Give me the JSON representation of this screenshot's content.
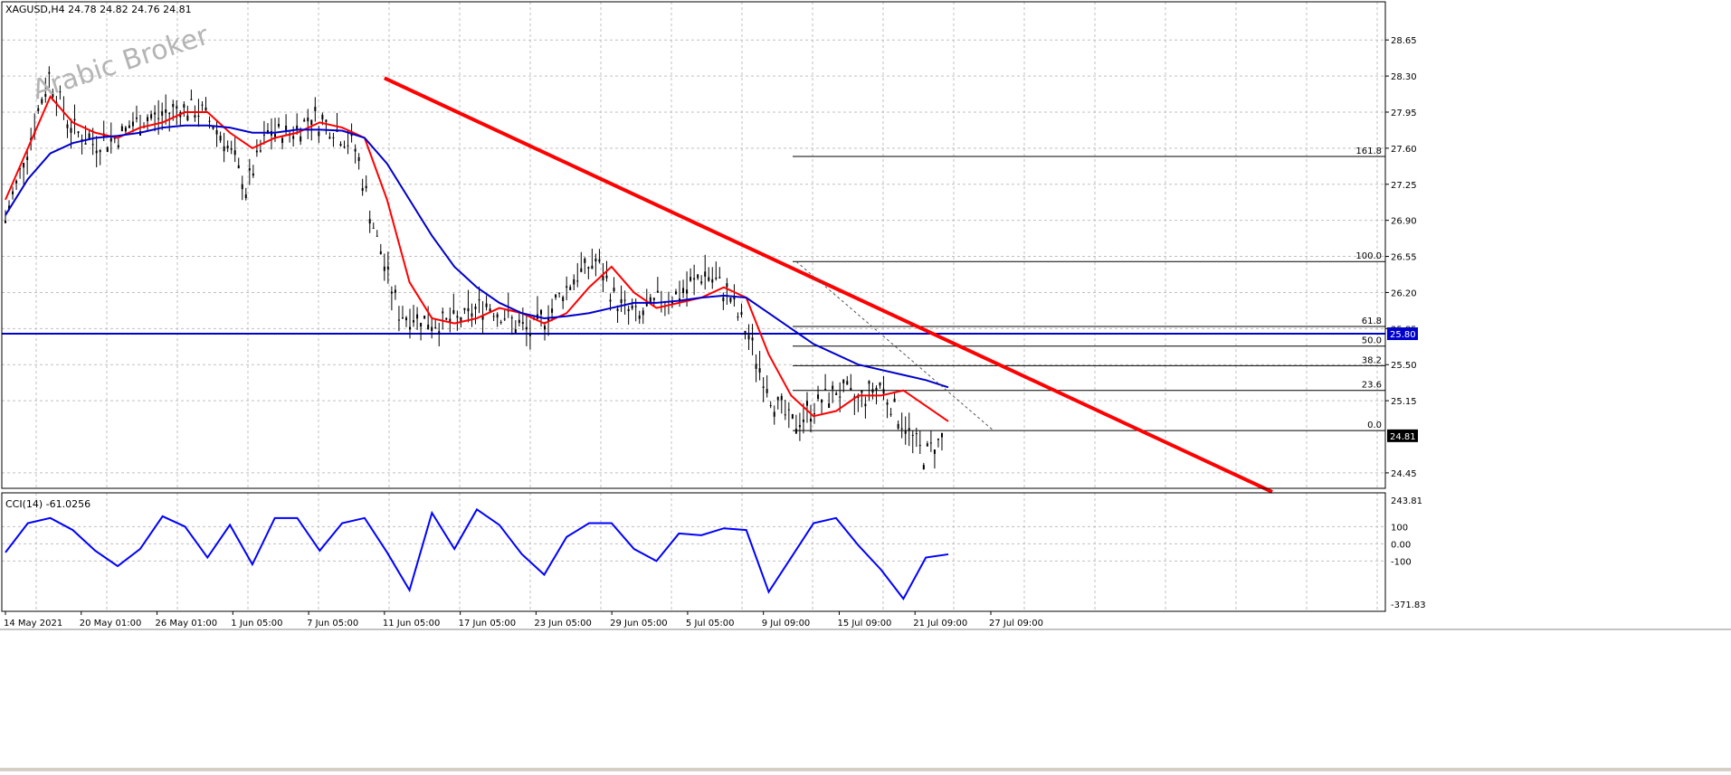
{
  "header": {
    "symbol_label": "XAGUSD,H4  24.78 24.82 24.76 24.81",
    "watermark": "Arabic Broker"
  },
  "cci_panel": {
    "label": "CCI(14) -61.0256",
    "current_value": -61.0256
  },
  "colors": {
    "background": "#ffffff",
    "grid": "#c0c0c0",
    "candle": "#000000",
    "ma_fast": "#ff0000",
    "ma_slow": "#0000cc",
    "trendline": "#ff0000",
    "support_line": "#0000cc",
    "fibo": "#000000",
    "cci": "#0000ff",
    "price_marker_bg": "#000000",
    "support_marker_bg": "#0000cc"
  },
  "chart_data": [
    {
      "type": "candlestick",
      "symbol": "XAGUSD",
      "timeframe": "H4",
      "ylim": [
        24.3,
        28.95
      ],
      "y_ticks": [
        "28.65",
        "28.30",
        "27.95",
        "27.60",
        "27.25",
        "26.90",
        "26.55",
        "26.20",
        "25.85",
        "25.50",
        "25.15",
        "24.45"
      ],
      "x_ticks": [
        "14 May 2021",
        "20 May 01:00",
        "26 May 01:00",
        "1 Jun 05:00",
        "7 Jun 05:00",
        "11 Jun 05:00",
        "17 Jun 05:00",
        "23 Jun 05:00",
        "29 Jun 05:00",
        "5 Jul 05:00",
        "9 Jul 09:00",
        "15 Jul 09:00",
        "21 Jul 09:00",
        "27 Jul 09:00"
      ],
      "current_price": "24.81",
      "close_path": [
        [
          "14 May 2021",
          26.9
        ],
        [
          "17 May",
          27.6
        ],
        [
          "19 May",
          28.3
        ],
        [
          "20 May 01:00",
          27.8
        ],
        [
          "22 May",
          27.65
        ],
        [
          "24 May",
          27.7
        ],
        [
          "26 May 01:00",
          27.85
        ],
        [
          "28 May",
          27.9
        ],
        [
          "31 May",
          28.0
        ],
        [
          "1 Jun 05:00",
          27.95
        ],
        [
          "3 Jun",
          27.7
        ],
        [
          "4 Jun",
          27.2
        ],
        [
          "7 Jun 05:00",
          27.75
        ],
        [
          "9 Jun",
          27.75
        ],
        [
          "11 Jun 05:00",
          27.9
        ],
        [
          "14 Jun",
          27.8
        ],
        [
          "15 Jun",
          27.6
        ],
        [
          "16 Jun",
          26.7
        ],
        [
          "17 Jun 05:00",
          26.0
        ],
        [
          "18 Jun",
          25.95
        ],
        [
          "21 Jun",
          25.9
        ],
        [
          "23 Jun 05:00",
          25.95
        ],
        [
          "25 Jun",
          26.1
        ],
        [
          "28 Jun",
          25.95
        ],
        [
          "29 Jun 05:00",
          25.8
        ],
        [
          "1 Jul",
          26.05
        ],
        [
          "2 Jul",
          26.35
        ],
        [
          "5 Jul 05:00",
          26.5
        ],
        [
          "6 Jul",
          26.1
        ],
        [
          "7 Jul",
          25.95
        ],
        [
          "9 Jul 09:00",
          26.15
        ],
        [
          "12 Jul",
          26.2
        ],
        [
          "14 Jul",
          26.4
        ],
        [
          "15 Jul 09:00",
          26.2
        ],
        [
          "16 Jul",
          25.75
        ],
        [
          "19 Jul",
          25.2
        ],
        [
          "20 Jul",
          24.9
        ],
        [
          "21 Jul 09:00",
          25.1
        ],
        [
          "22 Jul",
          25.25
        ],
        [
          "23 Jul",
          25.15
        ],
        [
          "26 Jul",
          25.3
        ],
        [
          "27 Jul 09:00",
          24.95
        ],
        [
          "27 Jul",
          24.62
        ],
        [
          "28 Jul",
          24.81
        ]
      ],
      "series": [
        {
          "name": "",
          "color": "#ff0000",
          "values": [
            27.1,
            27.6,
            28.1,
            27.85,
            27.75,
            27.7,
            27.8,
            27.85,
            27.95,
            27.95,
            27.75,
            27.6,
            27.7,
            27.75,
            27.85,
            27.8,
            27.7,
            27.1,
            26.3,
            25.95,
            25.9,
            25.95,
            26.05,
            26.0,
            25.9,
            26.0,
            26.25,
            26.45,
            26.2,
            26.05,
            26.1,
            26.15,
            26.25,
            26.15,
            25.6,
            25.2,
            25.0,
            25.05,
            25.2,
            25.2,
            25.25,
            25.1,
            24.95
          ]
        },
        {
          "name": "",
          "color": "#0000cc",
          "values": [
            26.95,
            27.3,
            27.55,
            27.65,
            27.7,
            27.72,
            27.75,
            27.8,
            27.82,
            27.82,
            27.8,
            27.75,
            27.75,
            27.78,
            27.78,
            27.77,
            27.7,
            27.45,
            27.1,
            26.75,
            26.45,
            26.25,
            26.1,
            26.0,
            25.95,
            25.97,
            26.0,
            26.05,
            26.1,
            26.1,
            26.12,
            26.15,
            26.17,
            26.15,
            26.0,
            25.85,
            25.7,
            25.6,
            25.5,
            25.45,
            25.4,
            25.35,
            25.28
          ]
        }
      ],
      "trendline": {
        "from": [
          "11 Jun 05:00",
          28.28
        ],
        "to": [
          "4 Aug",
          24.3
        ],
        "color": "#ff0000"
      },
      "horizontal_line": {
        "value": 25.8,
        "label": "25.80",
        "color": "#0000cc"
      },
      "fibonacci": {
        "high": 26.5,
        "low": 24.86,
        "levels": [
          {
            "label": "161.8",
            "value": 27.52
          },
          {
            "label": "100.0",
            "value": 26.5
          },
          {
            "label": "61.8",
            "value": 25.87
          },
          {
            "label": "50.0",
            "value": 25.68
          },
          {
            "label": "38.2",
            "value": 25.49
          },
          {
            "label": "23.6",
            "value": 25.25
          },
          {
            "label": "0.0",
            "value": 24.86
          }
        ]
      }
    },
    {
      "type": "line",
      "name": "CCI(14)",
      "ylim": [
        -371.83,
        243.81
      ],
      "y_ticks": [
        "243.81",
        "100",
        "0.00",
        "-100",
        "-371.83"
      ],
      "reference_levels": [
        100,
        0,
        -100
      ],
      "color": "#0000ff",
      "values": [
        -50,
        120,
        150,
        80,
        -40,
        -130,
        -30,
        160,
        100,
        -80,
        110,
        -120,
        150,
        150,
        -40,
        120,
        150,
        -50,
        -270,
        180,
        -30,
        200,
        110,
        -60,
        -180,
        40,
        120,
        120,
        -30,
        -100,
        60,
        50,
        90,
        80,
        -280,
        -80,
        120,
        150,
        -10,
        -150,
        -320,
        -80,
        -61
      ]
    }
  ]
}
